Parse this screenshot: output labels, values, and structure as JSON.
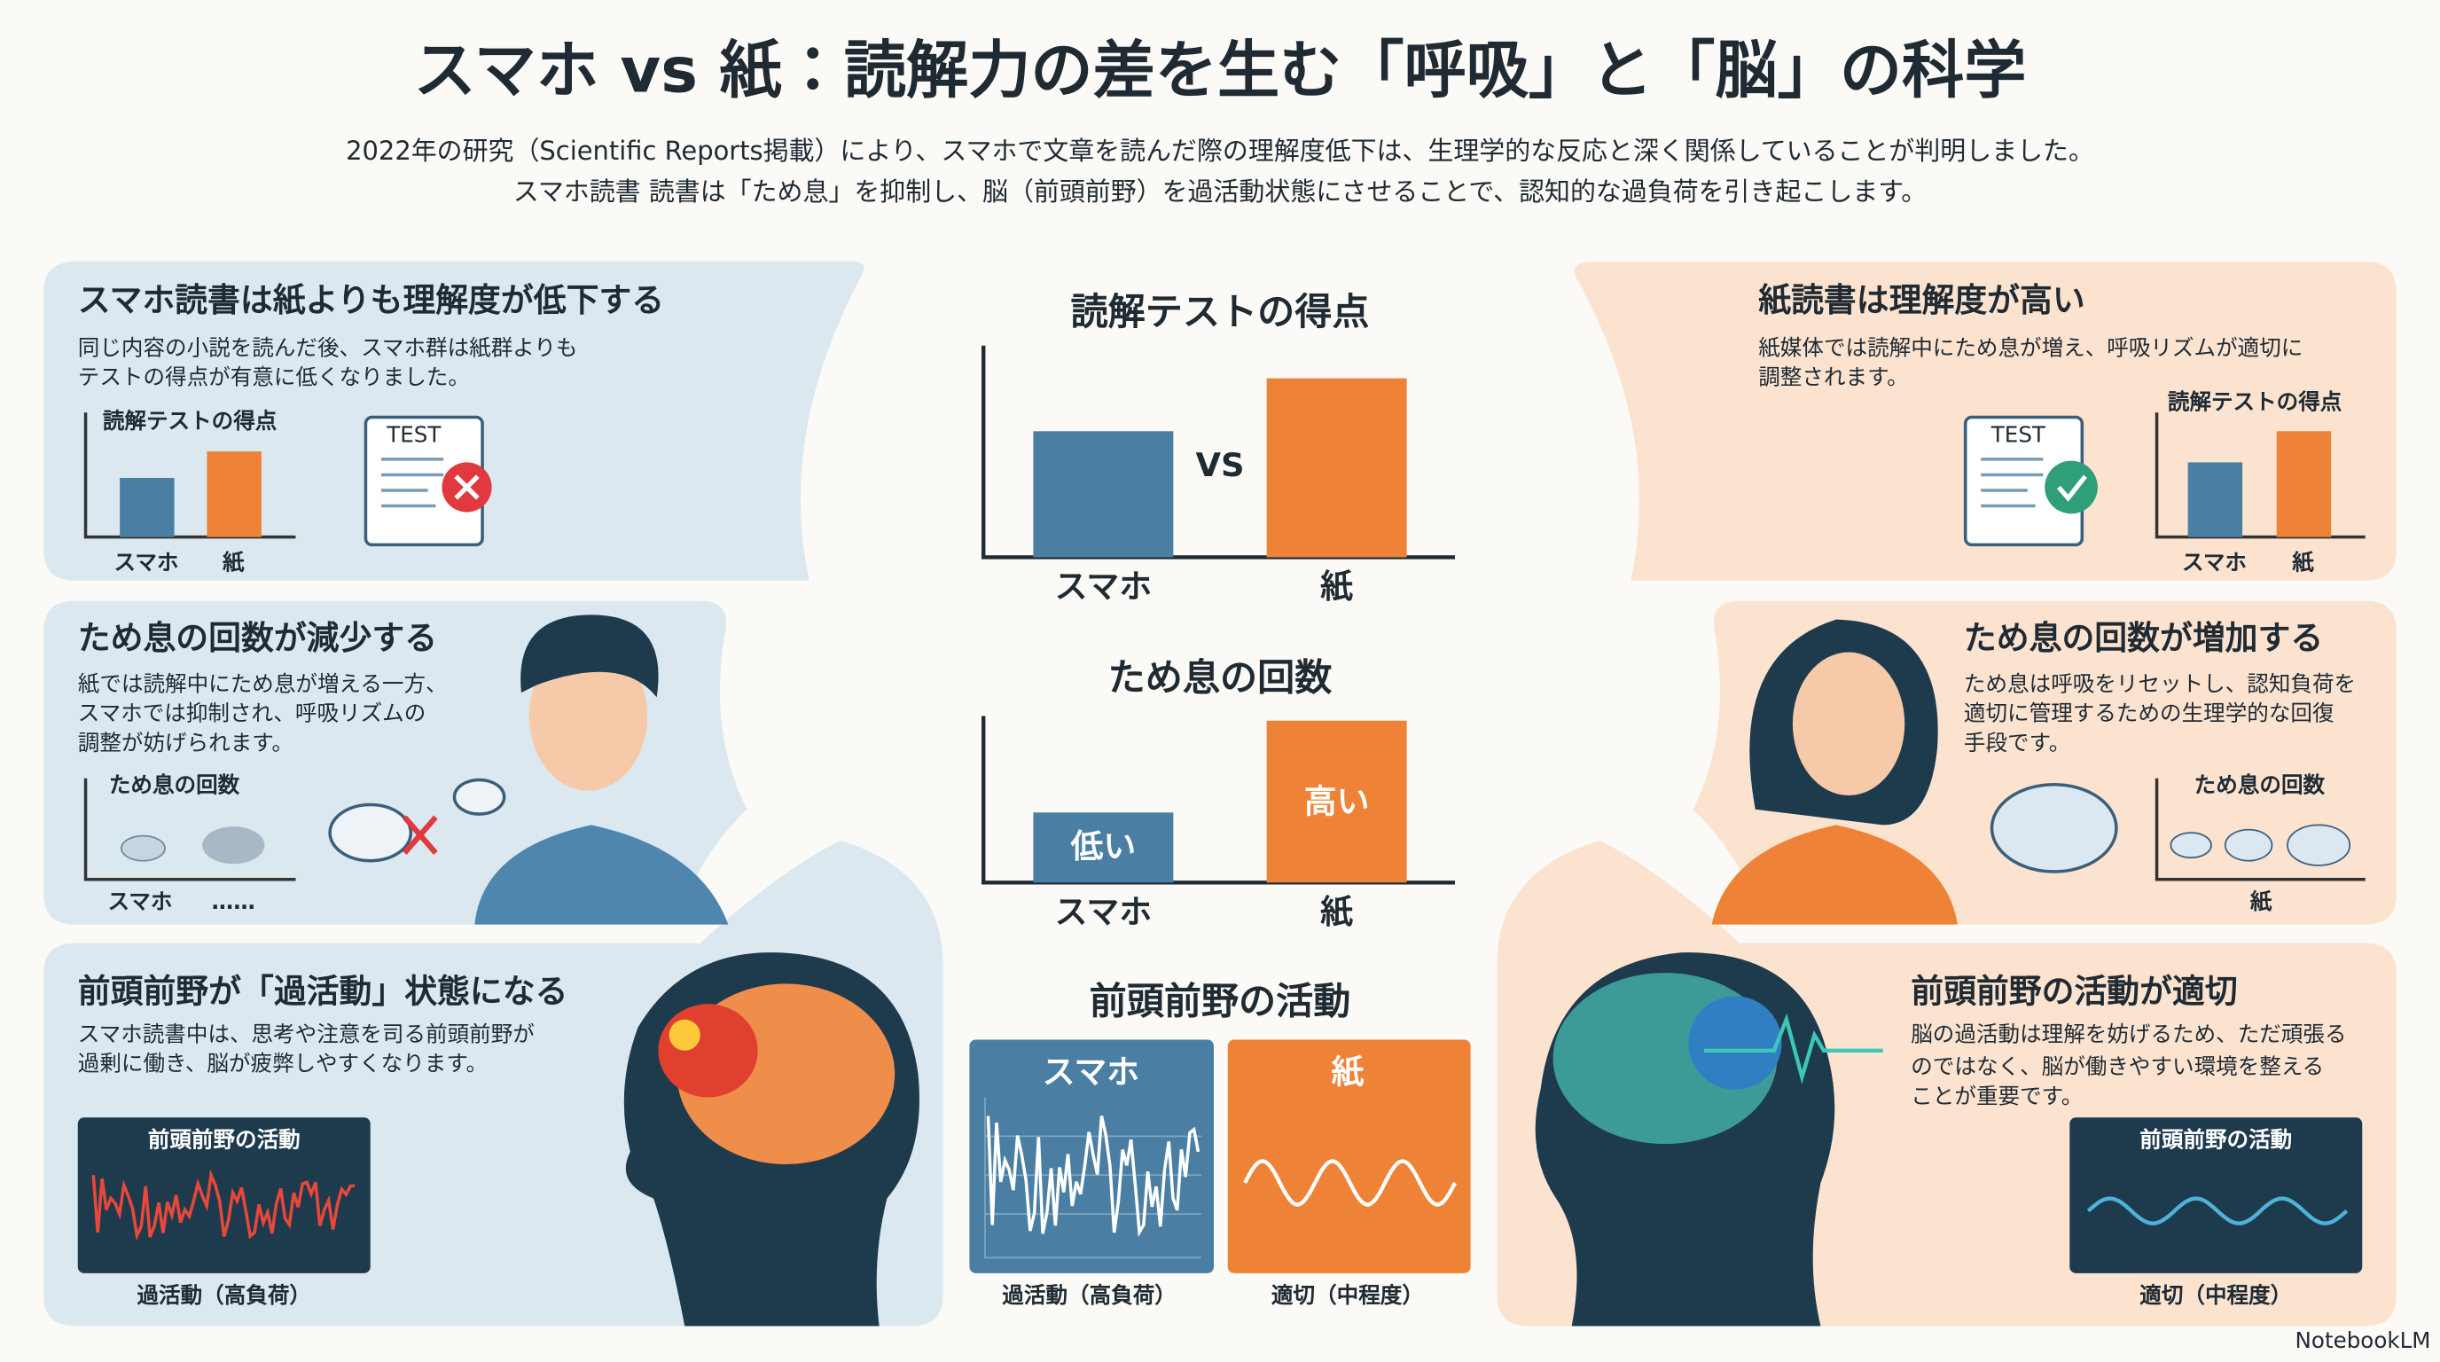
{
  "header": {
    "title": "スマホ vs 紙：読解力の差を生む「呼吸」と「脳」の科学",
    "subtitle": [
      "2022年の研究（Scientific Reports掲載）により、スマホで文章を読んだ際の理解度低下は、生理学的な反応と深く関係していることが判明しました。",
      "スマホ読書 読書は「ため息」を抑制し、脳（前頭前野）を過活動状態にさせることで、認知的な過負荷を引き起こします。"
    ]
  },
  "left": [
    {
      "heading": "スマホ読書は紙よりも理解度が低下する",
      "body": [
        "同じ内容の小説を読んだ後、スマホ群は紙群よりも",
        "テストの得点が有意に低くなりました。"
      ],
      "chart_title": "読解テストの得点",
      "labels": [
        "スマホ",
        "紙"
      ],
      "icon": "TEST"
    },
    {
      "heading": "ため息の回数が減少する",
      "body": [
        "紙では読解中にため息が増える一方、",
        "スマホでは抑制され、呼吸リズムの",
        "調整が妨げられます。"
      ],
      "chart_title": "ため息の回数",
      "labels": [
        "スマホ",
        "……"
      ]
    },
    {
      "heading": "前頭前野が「過活動」状態になる",
      "body": [
        "スマホ読書中は、思考や注意を司る前頭前野が",
        "過剰に働き、脳が疲弊しやすくなります。"
      ],
      "chart_title": "前頭前野の活動",
      "caption": "過活動（高負荷）"
    }
  ],
  "center": [
    {
      "title": "読解テストの得点",
      "vs": "VS",
      "labels": [
        "スマホ",
        "紙"
      ]
    },
    {
      "title": "ため息の回数",
      "bar_labels": [
        "低い",
        "高い"
      ],
      "labels": [
        "スマホ",
        "紙"
      ]
    },
    {
      "title": "前頭前野の活動",
      "labels": [
        "スマホ",
        "紙"
      ],
      "captions": [
        "過活動（高負荷）",
        "適切（中程度）"
      ]
    }
  ],
  "right": [
    {
      "heading": "紙読書は理解度が高い",
      "body": [
        "紙媒体では読解中にため息が増え、呼吸リズムが適切に",
        "調整されます。"
      ],
      "chart_title": "読解テストの得点",
      "labels": [
        "スマホ",
        "紙"
      ],
      "icon": "TEST"
    },
    {
      "heading": "ため息の回数が増加する",
      "body": [
        "ため息は呼吸をリセットし、認知負荷を",
        "適切に管理するための生理学的な回復",
        "手段です。"
      ],
      "chart_title": "ため息の回数",
      "labels": [
        "紙"
      ]
    },
    {
      "heading": "前頭前野の活動が適切",
      "body": [
        "脳の過活動は理解を妨げるため、ただ頑張る",
        "のではなく、脳が働きやすい環境を整える",
        "ことが重要です。"
      ],
      "chart_title": "前頭前野の活動",
      "caption": "適切（中程度）"
    }
  ],
  "footer": {
    "brand": "NotebookLM"
  }
}
